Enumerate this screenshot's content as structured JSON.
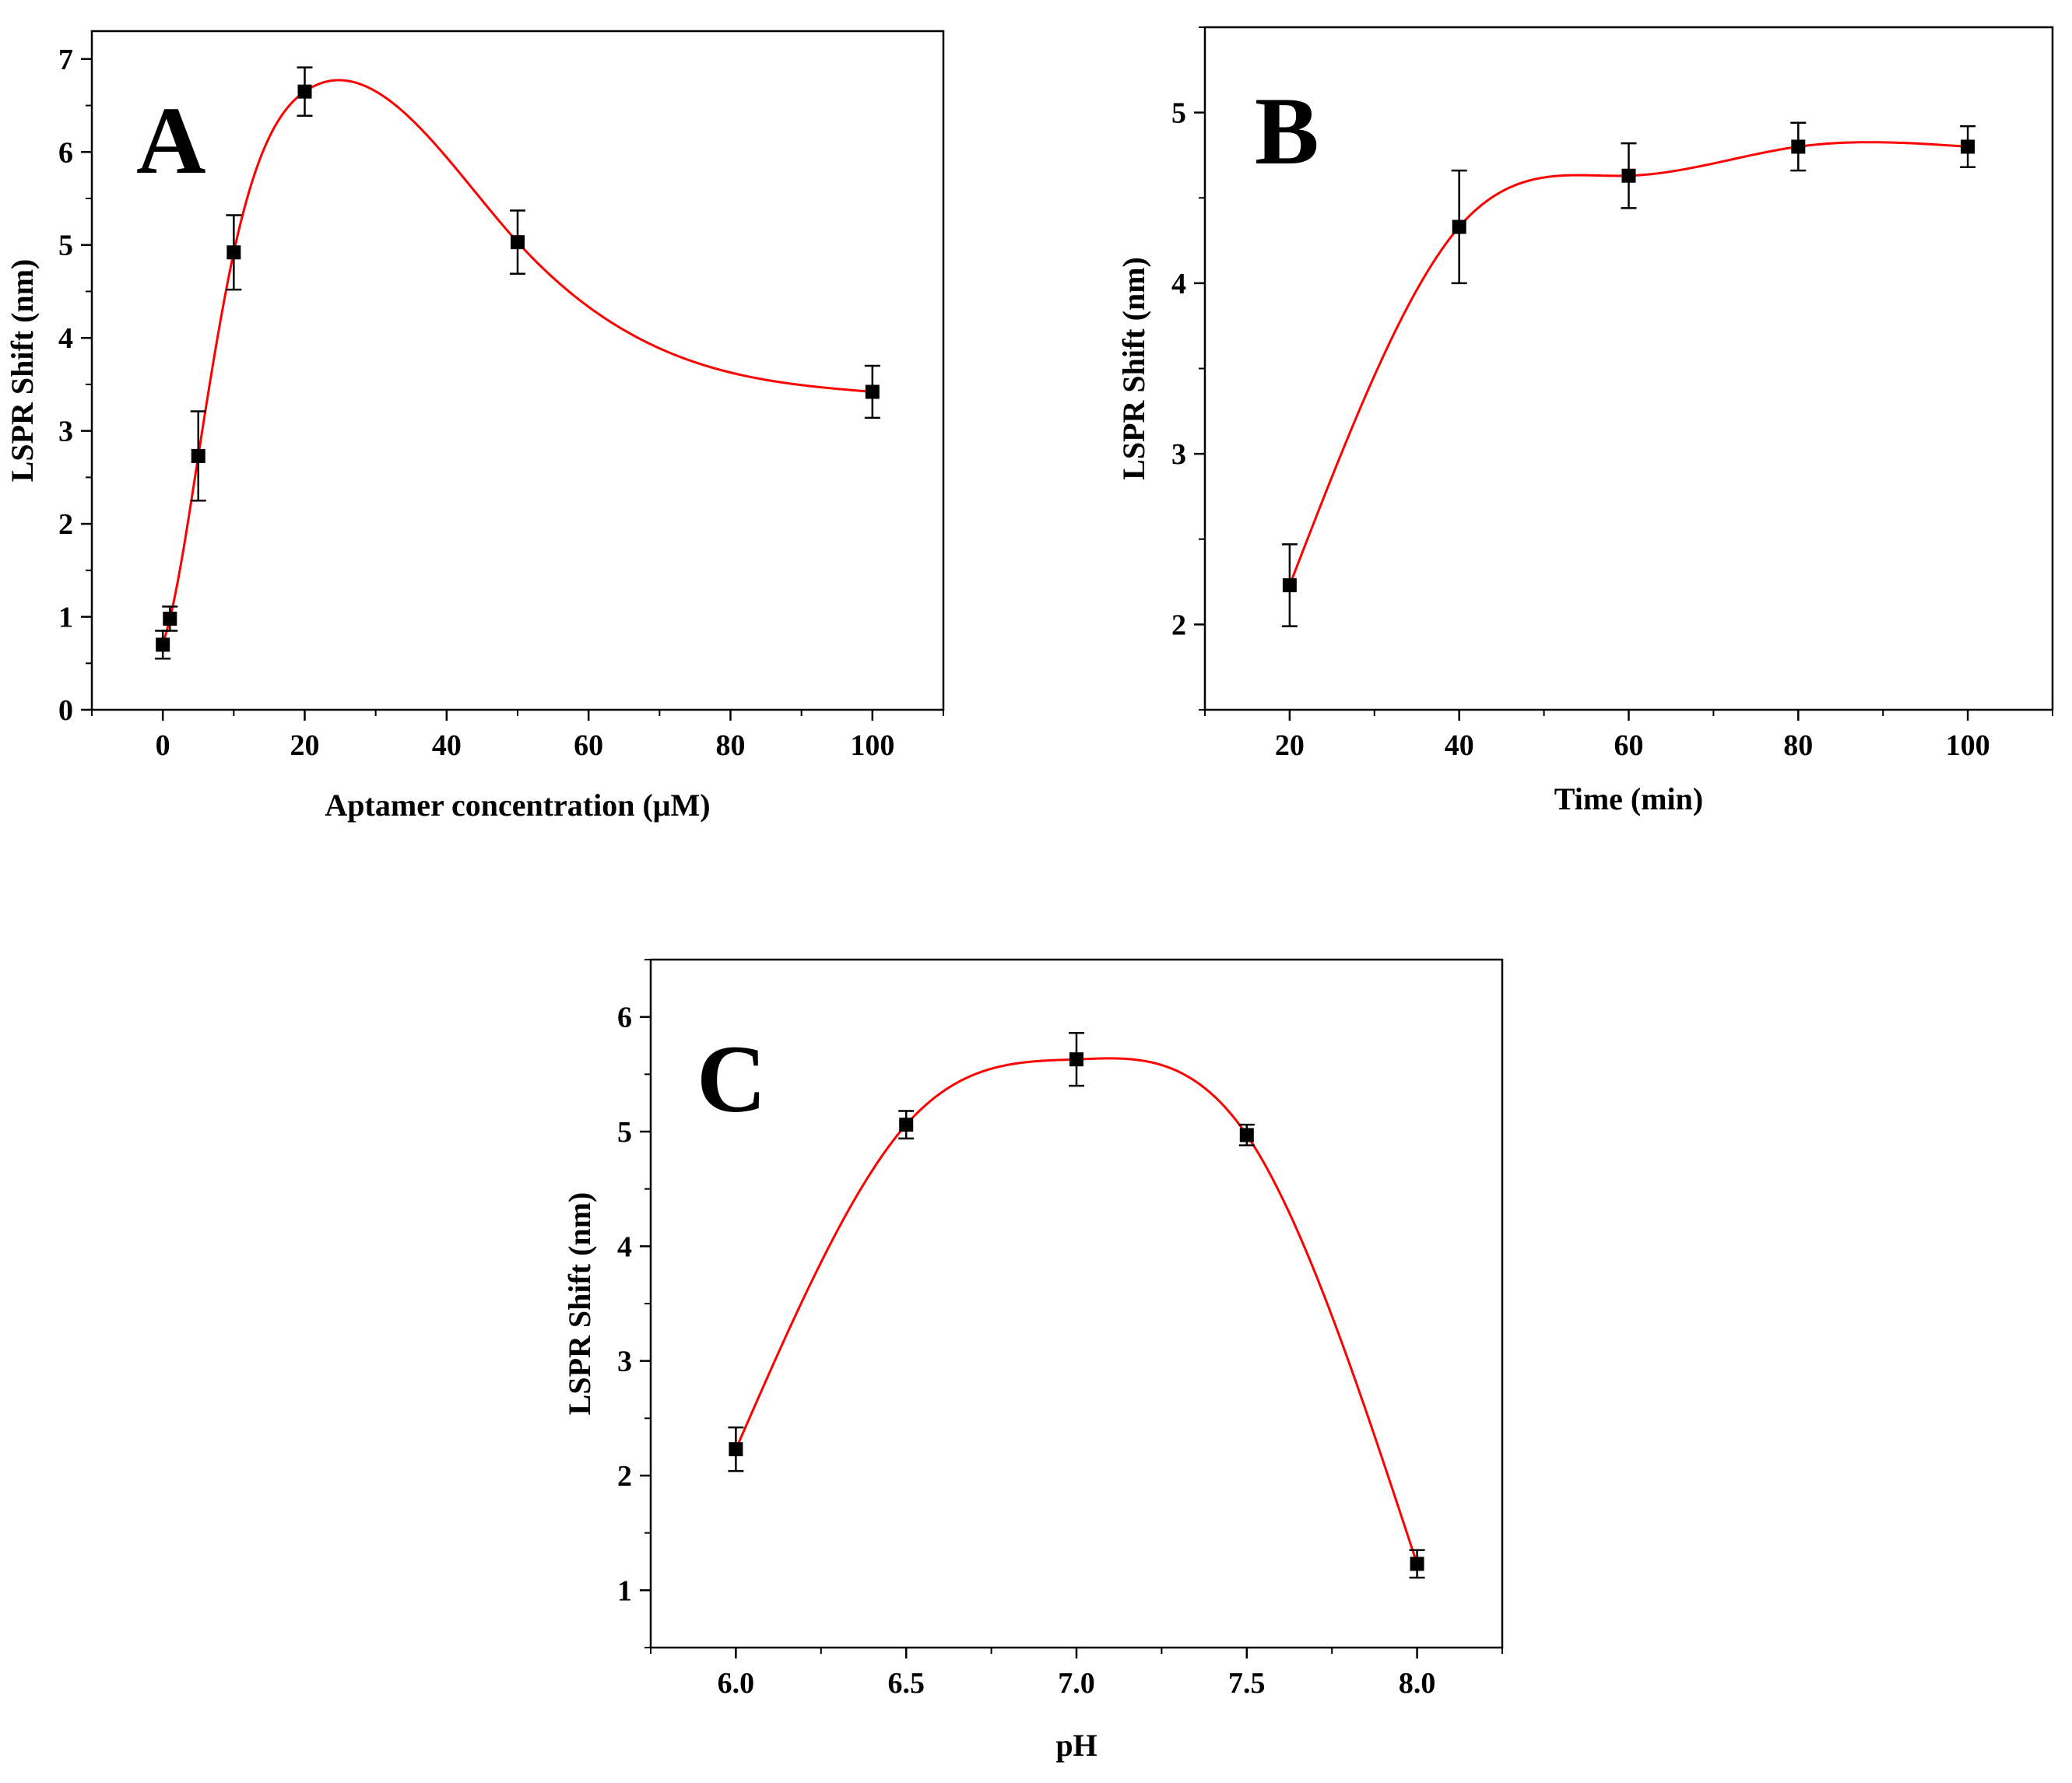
{
  "chart_data": [
    {
      "panel": "A",
      "type": "scatter",
      "xlabel": "Aptamer concentration (μM)",
      "ylabel": "LSPR Shift (nm)",
      "xlim": [
        -10,
        110
      ],
      "ylim": [
        0,
        7.3
      ],
      "xticks": [
        0,
        20,
        40,
        60,
        80,
        100
      ],
      "yticks": [
        0,
        1,
        2,
        3,
        4,
        5,
        6,
        7
      ],
      "grid": false,
      "marker": "square",
      "marker_color": "#000000",
      "fit_line_color": "#ff0000",
      "series": [
        {
          "x": [
            0,
            1,
            5,
            10,
            20,
            50,
            100
          ],
          "y": [
            0.7,
            0.98,
            2.73,
            4.92,
            6.65,
            5.03,
            3.42
          ],
          "error": [
            0.15,
            0.13,
            0.48,
            0.4,
            0.26,
            0.34,
            0.28
          ]
        }
      ]
    },
    {
      "panel": "B",
      "type": "scatter",
      "xlabel": "Time (min)",
      "ylabel": "LSPR Shift (nm)",
      "xlim": [
        10,
        110
      ],
      "ylim": [
        1.5,
        5.5
      ],
      "xticks": [
        20,
        40,
        60,
        80,
        100
      ],
      "yticks": [
        2,
        3,
        4,
        5
      ],
      "grid": false,
      "marker": "square",
      "marker_color": "#000000",
      "fit_line_color": "#ff0000",
      "series": [
        {
          "x": [
            20,
            40,
            60,
            80,
            100
          ],
          "y": [
            2.23,
            4.33,
            4.63,
            4.8,
            4.8
          ],
          "error": [
            0.24,
            0.33,
            0.19,
            0.14,
            0.12
          ]
        }
      ]
    },
    {
      "panel": "C",
      "type": "scatter",
      "xlabel": "pH",
      "ylabel": "LSPR Shift (nm)",
      "xlim": [
        5.75,
        8.25
      ],
      "ylim": [
        0.5,
        6.5
      ],
      "xticks": [
        "6.0",
        "6.5",
        "7.0",
        "7.5",
        "8.0"
      ],
      "yticks": [
        1,
        2,
        3,
        4,
        5,
        6
      ],
      "grid": false,
      "marker": "square",
      "marker_color": "#000000",
      "fit_line_color": "#ff0000",
      "series": [
        {
          "x": [
            6.0,
            6.5,
            7.0,
            7.5,
            8.0
          ],
          "y": [
            2.23,
            5.06,
            5.63,
            4.97,
            1.23
          ],
          "error": [
            0.19,
            0.12,
            0.23,
            0.09,
            0.12
          ]
        }
      ]
    }
  ]
}
